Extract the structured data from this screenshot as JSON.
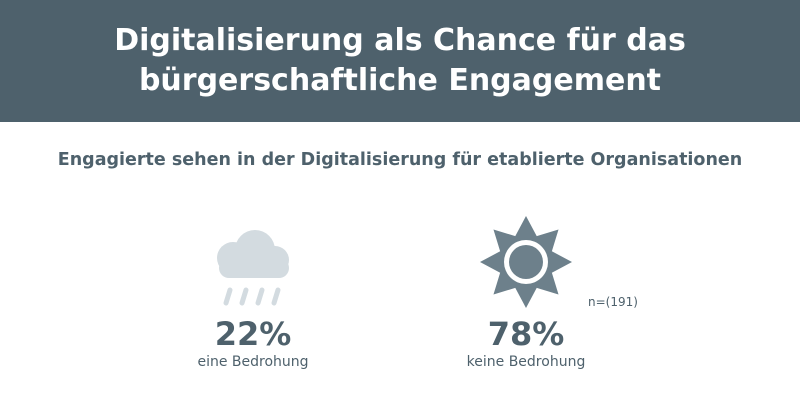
{
  "header": {
    "title": "Digitalisierung als Chance für das bürgerschaftliche Engagement"
  },
  "subtitle": "Engagierte sehen in der Digitalisierung für etablierte Organisationen",
  "sample_note": "n=(191)",
  "colors": {
    "header_bg": "#4e616c",
    "text": "#4e616c",
    "cloud": "#d3dbe0",
    "sun": "#6d808b"
  },
  "chart_data": {
    "type": "table",
    "categories": [
      "eine Bedrohung",
      "keine Bedrohung"
    ],
    "values": [
      22,
      78
    ],
    "value_labels": [
      "22%",
      "78%"
    ],
    "icons": [
      "rain-cloud-icon",
      "sun-icon"
    ],
    "title": "Digitalisierung als Chance für das bürgerschaftliche Engagement",
    "subtitle": "Engagierte sehen in der Digitalisierung für etablierte Organisationen",
    "note": "n=(191)"
  }
}
